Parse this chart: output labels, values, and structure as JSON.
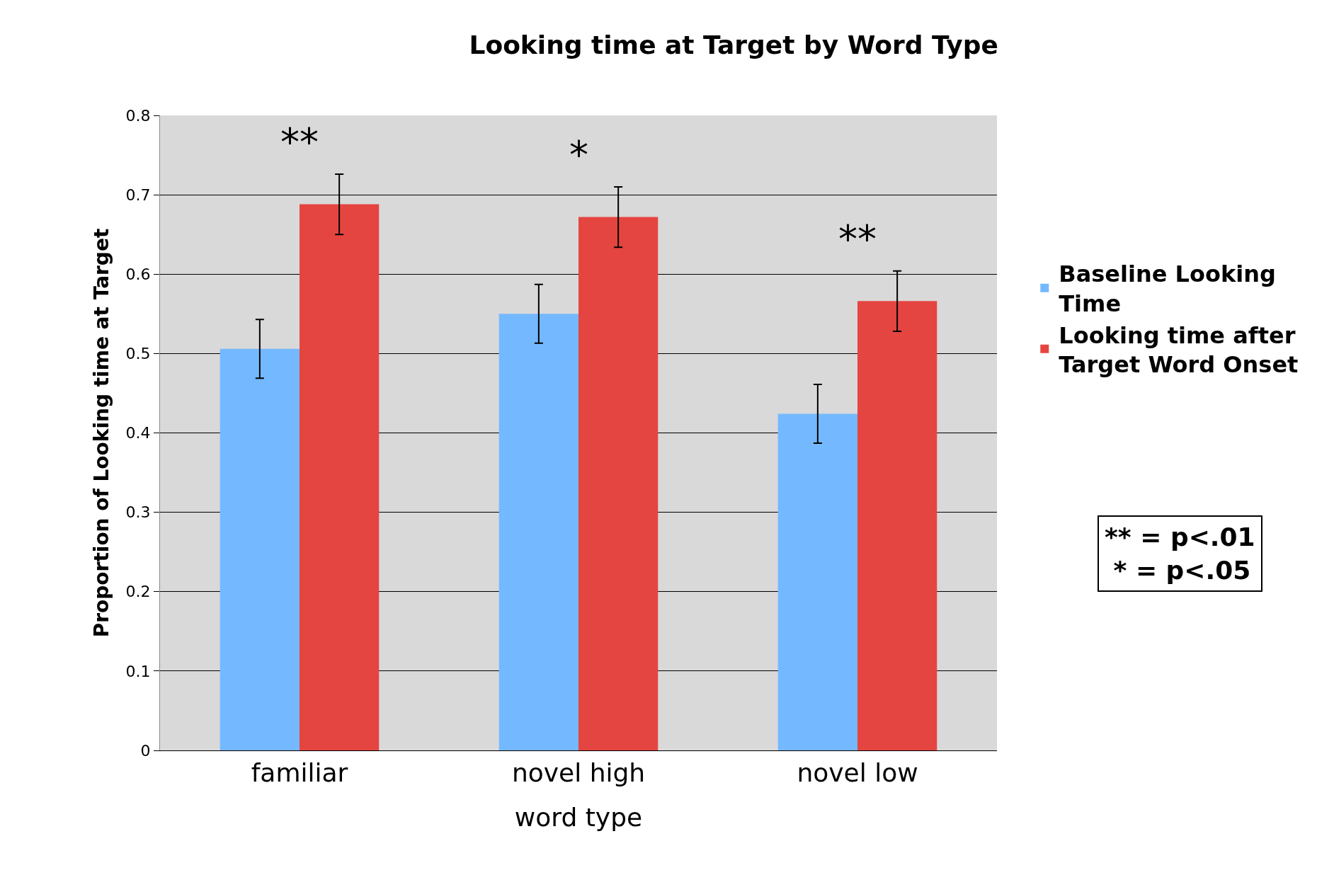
{
  "chart_data": {
    "type": "bar",
    "title": "Looking time at Target by Word Type",
    "xlabel": "word type",
    "ylabel": "Proportion of Looking time at Target",
    "categories": [
      "familiar",
      "novel high",
      "novel low"
    ],
    "series": [
      {
        "name": "Baseline Looking Time",
        "color": "#74b9ff",
        "values": [
          0.506,
          0.55,
          0.424
        ],
        "errors": [
          0.037,
          0.037,
          0.037
        ]
      },
      {
        "name": "Looking time after Target Word Onset",
        "color": "#e54540",
        "values": [
          0.688,
          0.672,
          0.566
        ],
        "errors": [
          0.038,
          0.038,
          0.038
        ]
      }
    ],
    "ylim": [
      0,
      0.8
    ],
    "yticks": [
      0,
      0.1,
      0.2,
      0.3,
      0.4,
      0.5,
      0.6,
      0.7,
      0.8
    ],
    "grid": "y",
    "legend": "right",
    "annotations": [
      "**",
      "*",
      "**",
      "** = p<.01\n * = p<.05"
    ]
  }
}
